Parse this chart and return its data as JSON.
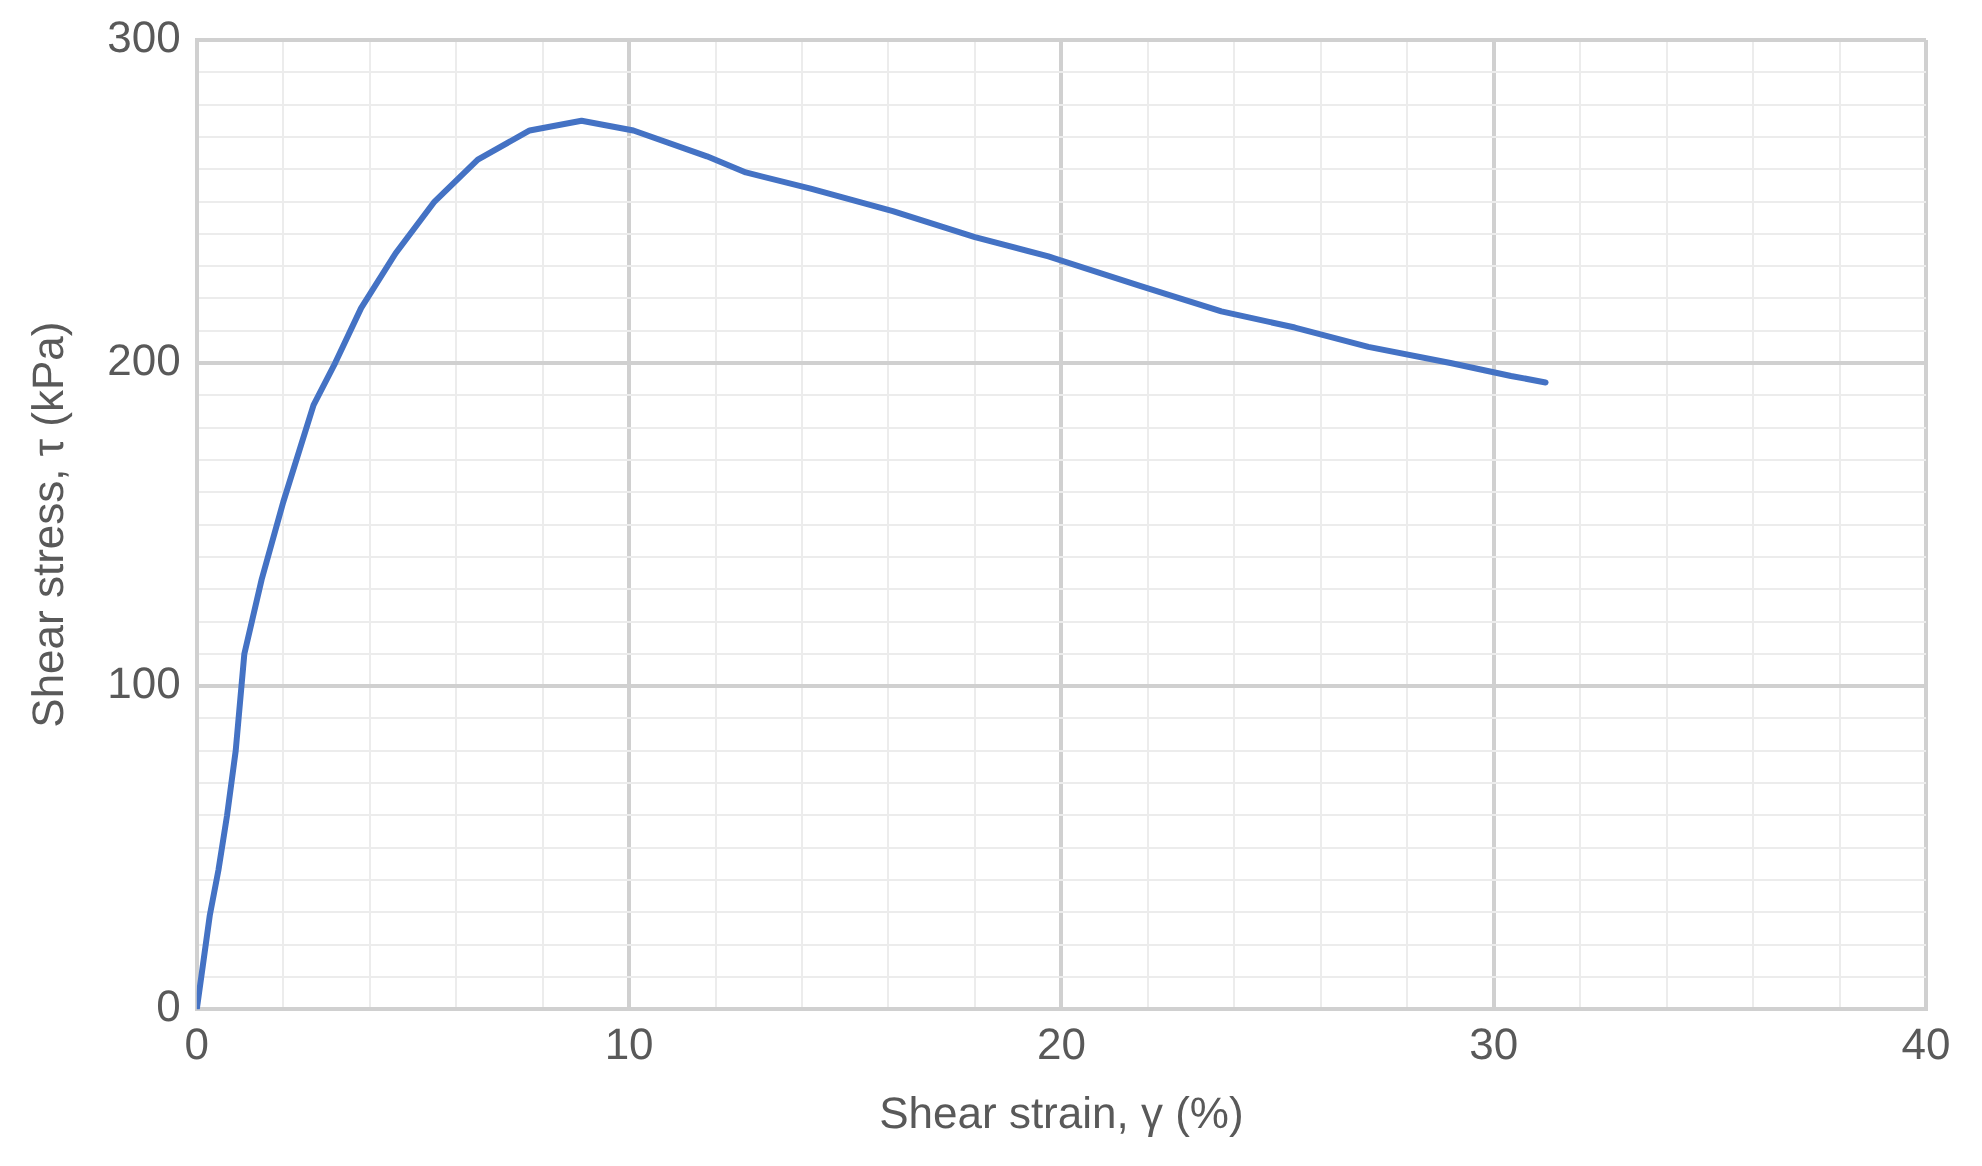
{
  "chart_data": {
    "type": "line",
    "xlabel": "Shear strain, γ (%)",
    "ylabel": "Shear stress, τ (kPa)",
    "xlim": [
      0,
      40
    ],
    "xticks": [
      0,
      {
        "value": 2,
        "label": null
      },
      {
        "value": 4,
        "label": null
      },
      {
        "value": 6,
        "label": null
      },
      {
        "value": 8,
        "label": null
      },
      10,
      {
        "value": 12,
        "label": null
      },
      {
        "value": 14,
        "label": null
      },
      {
        "value": 16,
        "label": null
      },
      {
        "value": 18,
        "label": null
      },
      20,
      {
        "value": 22,
        "label": null
      },
      {
        "value": 24,
        "label": null
      },
      {
        "value": 26,
        "label": null
      },
      {
        "value": 28,
        "label": null
      },
      30,
      {
        "value": 32,
        "label": null
      },
      {
        "value": 34,
        "label": null
      },
      {
        "value": 36,
        "label": null
      },
      {
        "value": 38,
        "label": null
      },
      40
    ],
    "ylim": [
      0,
      300
    ],
    "yticks": [
      0,
      {
        "value": 10,
        "label": null
      },
      {
        "value": 20,
        "label": null
      },
      {
        "value": 30,
        "label": null
      },
      {
        "value": 40,
        "label": null
      },
      {
        "value": 50,
        "label": null
      },
      {
        "value": 60,
        "label": null
      },
      {
        "value": 70,
        "label": null
      },
      {
        "value": 80,
        "label": null
      },
      {
        "value": 90,
        "label": null
      },
      100,
      {
        "value": 110,
        "label": null
      },
      {
        "value": 120,
        "label": null
      },
      {
        "value": 130,
        "label": null
      },
      {
        "value": 140,
        "label": null
      },
      {
        "value": 150,
        "label": null
      },
      {
        "value": 160,
        "label": null
      },
      {
        "value": 170,
        "label": null
      },
      {
        "value": 180,
        "label": null
      },
      {
        "value": 190,
        "label": null
      },
      200,
      {
        "value": 210,
        "label": null
      },
      {
        "value": 220,
        "label": null
      },
      {
        "value": 230,
        "label": null
      },
      {
        "value": 240,
        "label": null
      },
      {
        "value": 250,
        "label": null
      },
      {
        "value": 260,
        "label": null
      },
      {
        "value": 270,
        "label": null
      },
      {
        "value": 280,
        "label": null
      },
      {
        "value": 290,
        "label": null
      },
      300
    ],
    "grid": true,
    "legend": false,
    "marker": "none",
    "line_style": "solid",
    "series": [
      {
        "color": "#4472c4",
        "x": [
          0,
          0.3,
          0.5,
          0.7,
          0.9,
          1.1,
          1.5,
          2,
          2.7,
          3.2,
          3.8,
          4.6,
          5.5,
          6.5,
          7.7,
          8.9,
          10.1,
          11.8,
          12.7,
          14.2,
          16.1,
          18,
          19.7,
          21.8,
          23.7,
          25.4,
          27.1,
          29,
          30.4,
          31.2
        ],
        "values": [
          0,
          29,
          43,
          60,
          80,
          110,
          133,
          157,
          187,
          200,
          217,
          234,
          250,
          263,
          272,
          275,
          272,
          264,
          259,
          254,
          247,
          239,
          233,
          224,
          216,
          211,
          205,
          200,
          196,
          194
        ]
      }
    ]
  }
}
